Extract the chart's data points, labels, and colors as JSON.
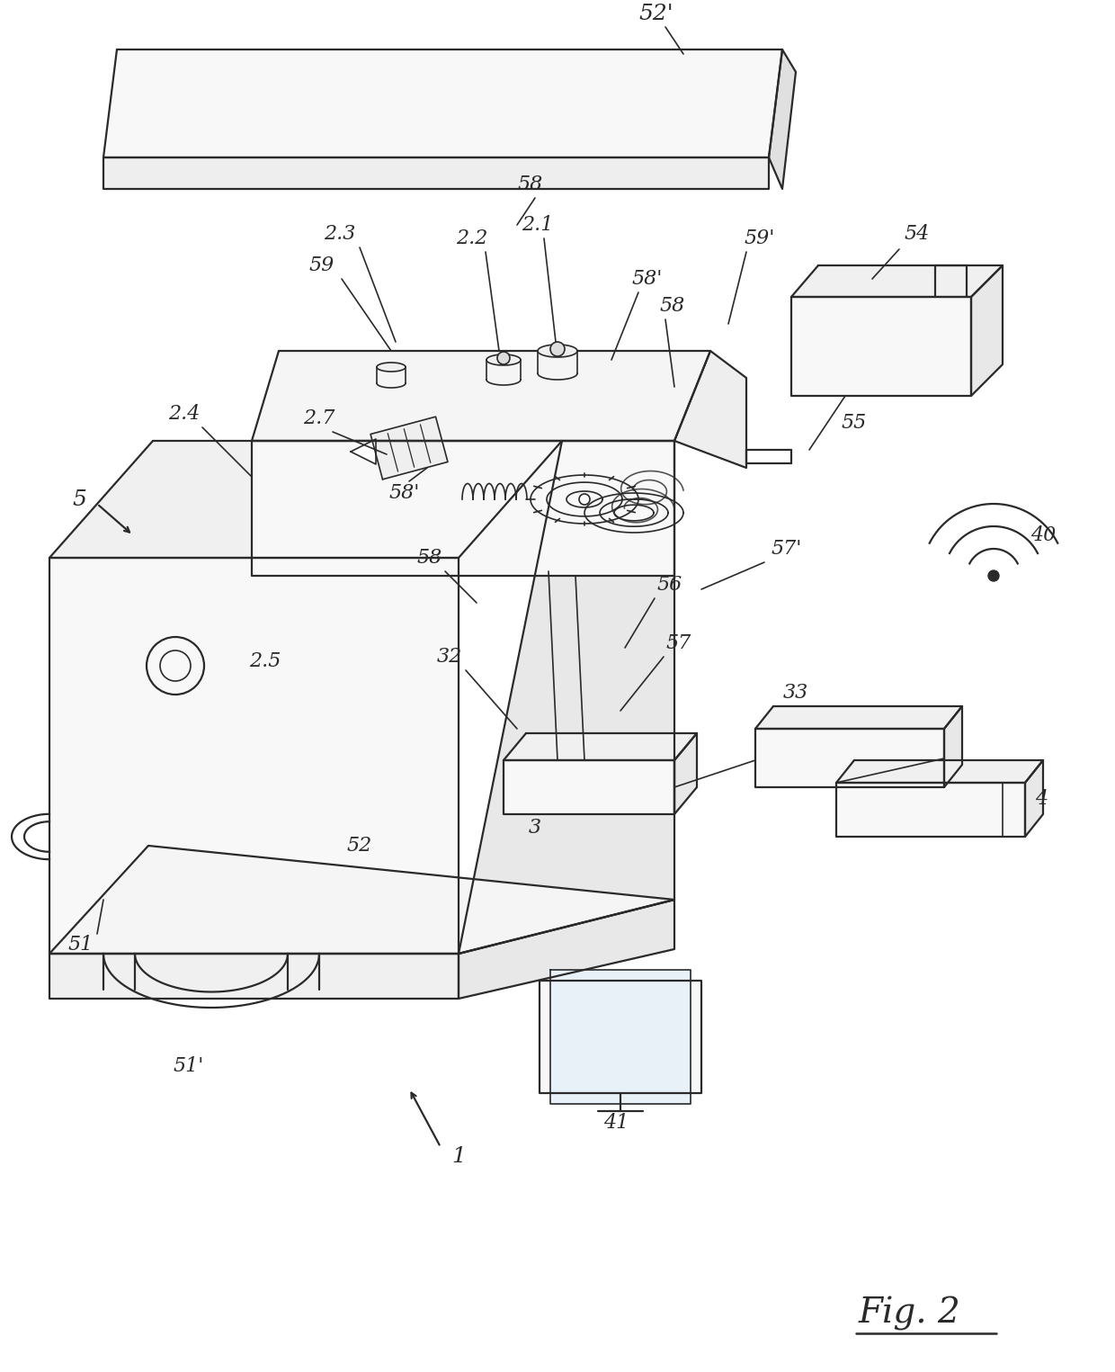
{
  "fig_label": "Fig. 2",
  "bg_color": "#ffffff",
  "lc": "#2a2a2a",
  "labels": {
    "52p": "52'",
    "58a": "58",
    "59": "59",
    "23": "2.3",
    "22": "2.2",
    "21": "2.1",
    "58pa": "58'",
    "59p": "59'",
    "54": "54",
    "24": "2.4",
    "27": "2.7",
    "58pb": "58'",
    "58b": "58",
    "55": "55",
    "5": "5",
    "25": "2.5",
    "57p": "57'",
    "40": "40",
    "56": "56",
    "57": "57",
    "32": "32",
    "3": "3",
    "33": "33",
    "4": "4",
    "52": "52",
    "51": "51",
    "51p": "51'",
    "1": "1",
    "41": "41"
  }
}
